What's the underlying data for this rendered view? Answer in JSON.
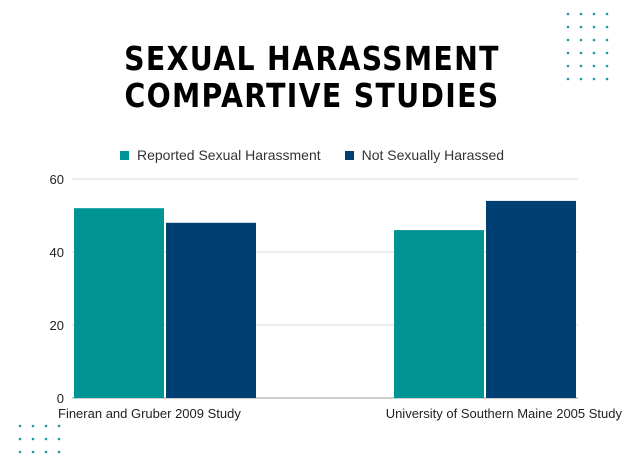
{
  "title_lines": [
    "SEXUAL HARASSMENT",
    "COMPARTIVE STUDIES"
  ],
  "chart_data": {
    "type": "bar",
    "categories": [
      "Fineran and Gruber 2009 Study",
      "University of Southern Maine 2005 Study"
    ],
    "series": [
      {
        "name": "Reported Sexual Harassment",
        "values": [
          52,
          46
        ],
        "color": "#009494"
      },
      {
        "name": "Not Sexually Harassed",
        "values": [
          48,
          54
        ],
        "color": "#003f72"
      }
    ],
    "ylim": [
      0,
      60
    ],
    "yticks": [
      0,
      20,
      40,
      60
    ],
    "grid": true,
    "legend_position": "top"
  },
  "decor_dot_color": "#1e9aa2"
}
